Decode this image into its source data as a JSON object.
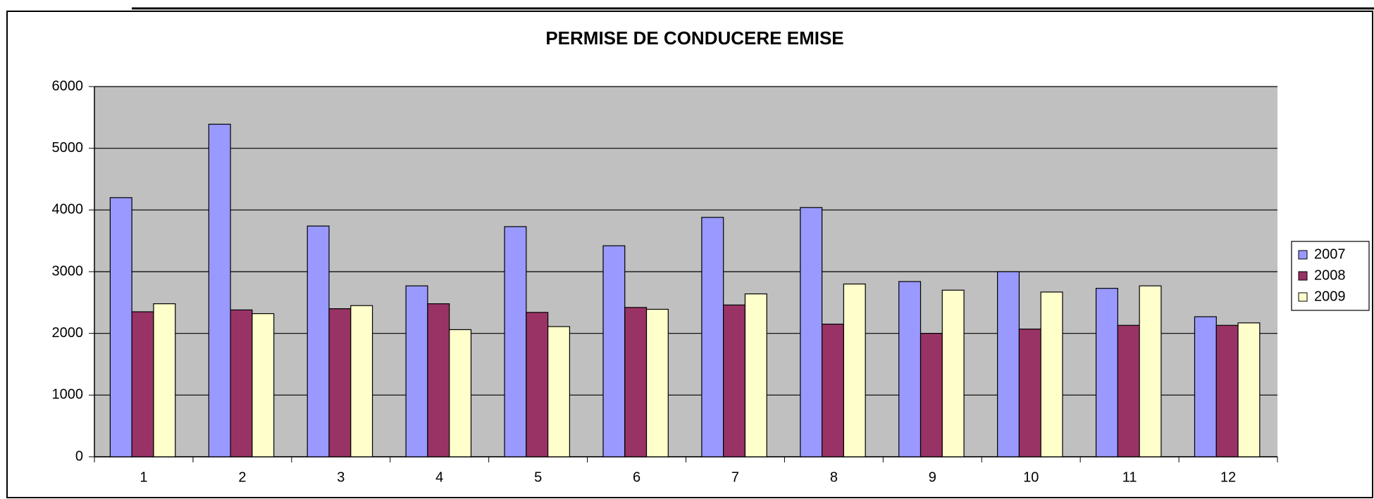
{
  "chart_data": {
    "type": "bar",
    "title": "PERMISE DE CONDUCERE EMISE",
    "categories": [
      "1",
      "2",
      "3",
      "4",
      "5",
      "6",
      "7",
      "8",
      "9",
      "10",
      "11",
      "12"
    ],
    "series": [
      {
        "name": "2007",
        "color": "#9999ff",
        "values": [
          4200,
          5390,
          3740,
          2770,
          3730,
          3420,
          3880,
          4040,
          2840,
          3000,
          2730,
          2270
        ]
      },
      {
        "name": "2008",
        "color": "#993366",
        "values": [
          2350,
          2380,
          2400,
          2480,
          2340,
          2420,
          2460,
          2150,
          2000,
          2070,
          2130,
          2130
        ]
      },
      {
        "name": "2009",
        "color": "#ffffcc",
        "values": [
          2480,
          2320,
          2450,
          2060,
          2110,
          2390,
          2640,
          2800,
          2700,
          2670,
          2770,
          2170
        ]
      }
    ],
    "ylim": [
      0,
      6000
    ],
    "yticks": [
      0,
      1000,
      2000,
      3000,
      4000,
      5000,
      6000
    ],
    "grid": true,
    "plot_background": "#c0c0c0",
    "legend": "right"
  }
}
